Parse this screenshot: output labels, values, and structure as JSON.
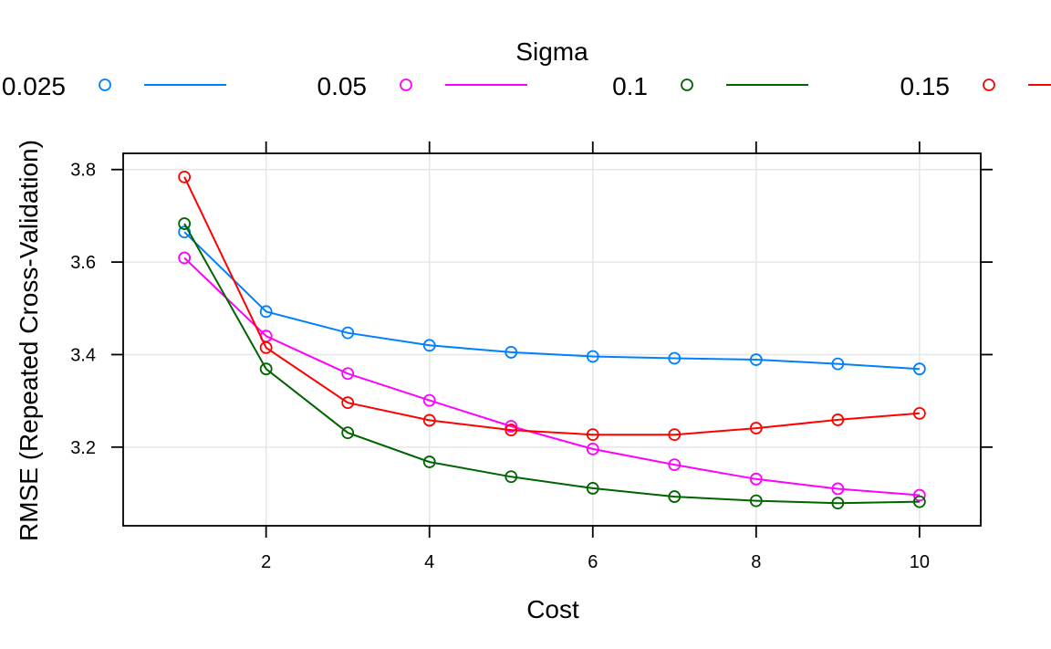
{
  "chart_data": {
    "type": "line",
    "title": "",
    "xlabel": "Cost",
    "ylabel": "RMSE (Repeated Cross-Validation)",
    "xlim": [
      0.25,
      10.75
    ],
    "ylim": [
      3.03,
      3.835
    ],
    "x_ticks": [
      2,
      4,
      6,
      8,
      10
    ],
    "x_tick_labels": [
      "2",
      "4",
      "6",
      "8",
      "10"
    ],
    "y_ticks": [
      3.2,
      3.4,
      3.6,
      3.8
    ],
    "y_tick_labels": [
      "3.2",
      "3.4",
      "3.6",
      "3.8"
    ],
    "grid": true,
    "legend": {
      "title": "Sigma",
      "placement": "top"
    },
    "x": [
      1,
      2,
      3,
      4,
      5,
      6,
      7,
      8,
      9,
      10
    ],
    "series": [
      {
        "name": "0.025",
        "color": "#0080ff",
        "values": [
          3.665,
          3.493,
          3.447,
          3.42,
          3.405,
          3.396,
          3.392,
          3.389,
          3.38,
          3.369
        ]
      },
      {
        "name": "0.05",
        "color": "#ff00ff",
        "values": [
          3.609,
          3.44,
          3.359,
          3.301,
          3.245,
          3.196,
          3.162,
          3.131,
          3.11,
          3.096
        ]
      },
      {
        "name": "0.1",
        "color": "#006400",
        "values": [
          3.683,
          3.369,
          3.231,
          3.168,
          3.136,
          3.111,
          3.093,
          3.084,
          3.079,
          3.082
        ]
      },
      {
        "name": "0.15",
        "color": "#ff0000",
        "values": [
          3.784,
          3.415,
          3.296,
          3.258,
          3.237,
          3.227,
          3.227,
          3.241,
          3.259,
          3.273
        ]
      }
    ]
  }
}
